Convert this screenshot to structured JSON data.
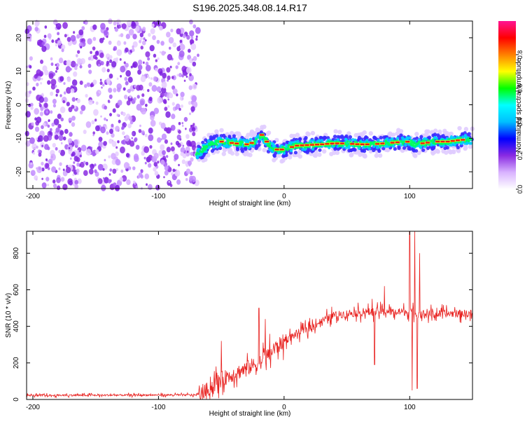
{
  "title": "S196.2025.348.08.14.R17",
  "chart_data": [
    {
      "type": "heatmap",
      "title": "S196.2025.348.08.14.R17",
      "xlabel": "Height of straight line (km)",
      "ylabel": "Frequency (Hz)",
      "xlim": [
        -205,
        150
      ],
      "ylim": [
        -25,
        25
      ],
      "xticks": [
        -200,
        -100,
        0,
        100
      ],
      "yticks": [
        -20,
        -10,
        0,
        10,
        20
      ],
      "colorbar": {
        "label": "Normalized spectral amplitude",
        "range": [
          0,
          1
        ],
        "ticks": [
          0.0,
          0.2,
          0.4,
          0.6,
          0.8
        ],
        "tick_labels": [
          "0.0",
          "0.2",
          "0.4",
          "0.6",
          "0.8"
        ],
        "colormap": [
          "#ffffff",
          "#d9b3ff",
          "#8a2be2",
          "#0000ff",
          "#00bfff",
          "#00ffff",
          "#00ff00",
          "#ffff00",
          "#ff8000",
          "#ff0000",
          "#ff1493"
        ]
      },
      "noise_region_x": [
        -205,
        -68
      ],
      "signal_track": {
        "x": [
          -70,
          -60,
          -50,
          -40,
          -30,
          -22,
          -18,
          -12,
          -8,
          -4,
          0,
          10,
          20,
          30,
          40,
          50,
          60,
          70,
          80,
          90,
          100,
          105,
          110,
          120,
          130,
          140,
          150
        ],
        "freq": [
          -15,
          -12,
          -11,
          -11.5,
          -11.8,
          -11,
          -9,
          -12,
          -13.2,
          -13.5,
          -13.2,
          -12.2,
          -12,
          -11.8,
          -11.5,
          -11.6,
          -11.8,
          -11.8,
          -11.5,
          -11.2,
          -11,
          -12,
          -11.5,
          -11,
          -11,
          -10.5,
          -10.3
        ]
      }
    },
    {
      "type": "line",
      "xlabel": "Height of straight line (km)",
      "ylabel": "SNR (10 * v/v)",
      "xlim": [
        -205,
        150
      ],
      "ylim": [
        0,
        920
      ],
      "xticks": [
        -200,
        -100,
        0,
        100
      ],
      "yticks": [
        0,
        200,
        400,
        600,
        800
      ],
      "series": [
        {
          "name": "SNR",
          "color": "#e8201e",
          "envelope": {
            "x": [
              -205,
              -70,
              -65,
              -60,
              -50,
              -40,
              -30,
              -20,
              -10,
              0,
              10,
              20,
              30,
              40,
              50,
              60,
              70,
              80,
              90,
              100,
              110,
              120,
              130,
              140,
              150
            ],
            "y": [
              22,
              25,
              30,
              60,
              110,
              140,
              170,
              200,
              260,
              320,
              360,
              390,
              430,
              460,
              470,
              475,
              480,
              480,
              478,
              480,
              470,
              465,
              470,
              470,
              470
            ]
          },
          "spikes": [
            {
              "x": -50,
              "y": 320
            },
            {
              "x": -20,
              "y": 500
            },
            {
              "x": -15,
              "y": 440
            },
            {
              "x": 70,
              "y": 550
            },
            {
              "x": 72,
              "y": 190
            },
            {
              "x": 80,
              "y": 620
            },
            {
              "x": 100,
              "y": 920
            },
            {
              "x": 102,
              "y": 50
            },
            {
              "x": 104,
              "y": 920
            },
            {
              "x": 106,
              "y": 60
            },
            {
              "x": 108,
              "y": 800
            }
          ]
        }
      ]
    }
  ]
}
